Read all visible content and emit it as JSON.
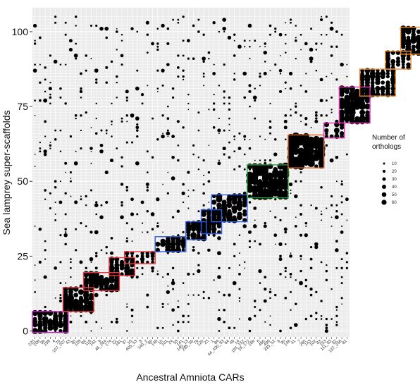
{
  "chart_data": {
    "type": "scatter",
    "title": "",
    "xlabel": "Ancestral Amniota CARs",
    "ylabel": "Sea lamprey super-scaffolds",
    "ylim": [
      -2,
      108
    ],
    "yticks": [
      0,
      25,
      50,
      75,
      100
    ],
    "grid": "on",
    "x_tick_labels": [
      "225",
      "209",
      "39",
      "198",
      "4",
      "70",
      "107_207",
      "43",
      "30",
      "128",
      "84",
      "116",
      "162",
      "9",
      "46_264",
      "174",
      "22",
      "181",
      "37",
      "10",
      "405_53",
      "8",
      "140_2",
      "60",
      "148",
      "10",
      "101",
      "24",
      "58",
      "141",
      "140_13",
      "285_50",
      "79",
      "120",
      "23",
      "1",
      "84",
      "44_430_93",
      "64",
      "46",
      "14",
      "195_152",
      "14_172",
      "169",
      "6",
      "460",
      "496",
      "393_52",
      "9",
      "90",
      "146",
      "41",
      "7",
      "260",
      "143",
      "102",
      "83",
      "153",
      "111_83",
      "32",
      "137_256",
      "82"
    ],
    "legend": {
      "title": "Number of orthologs",
      "position": "right",
      "sizes": [
        10,
        20,
        30,
        40,
        50,
        60
      ]
    },
    "boxes": [
      {
        "x": [
          0.5,
          7.5
        ],
        "y": [
          -0.5,
          6.5
        ],
        "color": "#c623c6"
      },
      {
        "x": [
          6.5,
          12.5
        ],
        "y": [
          6.5,
          14.5
        ],
        "color": "#e8333a"
      },
      {
        "x": [
          10.5,
          17.5
        ],
        "y": [
          13.5,
          19.5
        ],
        "color": "#e8333a"
      },
      {
        "x": [
          15.5,
          20.5
        ],
        "y": [
          18.5,
          24.5
        ],
        "color": "#e8333a"
      },
      {
        "x": [
          18.5,
          24.5
        ],
        "y": [
          22.5,
          26.5
        ],
        "color": "#e8333a"
      },
      {
        "x": [
          24.5,
          30.5
        ],
        "y": [
          26.5,
          31.5
        ],
        "color": "#2f5fe6"
      },
      {
        "x": [
          30.5,
          34.5
        ],
        "y": [
          30.5,
          36.5
        ],
        "color": "#2f5fe6"
      },
      {
        "x": [
          33.5,
          37.5
        ],
        "y": [
          32.5,
          40.5
        ],
        "color": "#2f5fe6"
      },
      {
        "x": [
          35.5,
          42.5
        ],
        "y": [
          36.5,
          45.5
        ],
        "color": "#2f5fe6"
      },
      {
        "x": [
          42.5,
          50.5
        ],
        "y": [
          44.5,
          55.5
        ],
        "color": "#24a03c"
      },
      {
        "x": [
          50.5,
          57.5
        ],
        "y": [
          54.5,
          65.5
        ],
        "color": "#d9641b"
      },
      {
        "x": [
          57.5,
          61.5
        ],
        "y": [
          64.5,
          69.5
        ],
        "color": "#e82fb8"
      },
      {
        "x": [
          60.5,
          66.5
        ],
        "y": [
          69.5,
          81.5
        ],
        "color": "#e82fb8"
      },
      {
        "x": [
          64.5,
          71.5
        ],
        "y": [
          78.5,
          87.5
        ],
        "color": "#f08a2a"
      },
      {
        "x": [
          69.5,
          74.5
        ],
        "y": [
          87.5,
          93.5
        ],
        "color": "#f08a2a"
      },
      {
        "x": [
          72.5,
          80.5
        ],
        "y": [
          92.5,
          101.5
        ],
        "color": "#f08a2a"
      },
      {
        "x": [
          79.5,
          87.5
        ],
        "y": [
          101.5,
          105.5
        ],
        "color": "#24a03c"
      }
    ],
    "clusters": [
      {
        "x": [
          1,
          7
        ],
        "y": [
          0,
          6
        ],
        "size": 22
      },
      {
        "x": [
          7,
          12
        ],
        "y": [
          7,
          14
        ],
        "size": 26
      },
      {
        "x": [
          11,
          17
        ],
        "y": [
          14,
          19
        ],
        "size": 26
      },
      {
        "x": [
          16,
          20
        ],
        "y": [
          19,
          24
        ],
        "size": 22
      },
      {
        "x": [
          19,
          24
        ],
        "y": [
          23,
          26
        ],
        "size": 12
      },
      {
        "x": [
          25,
          30
        ],
        "y": [
          27,
          31
        ],
        "size": 20
      },
      {
        "x": [
          31,
          34
        ],
        "y": [
          31,
          36
        ],
        "size": 24
      },
      {
        "x": [
          34,
          37
        ],
        "y": [
          33,
          40
        ],
        "size": 26
      },
      {
        "x": [
          36,
          42
        ],
        "y": [
          37,
          45
        ],
        "size": 24
      },
      {
        "x": [
          43,
          50
        ],
        "y": [
          45,
          55
        ],
        "size": 34
      },
      {
        "x": [
          51,
          57
        ],
        "y": [
          55,
          65
        ],
        "size": 36
      },
      {
        "x": [
          58,
          61
        ],
        "y": [
          65,
          69
        ],
        "size": 18
      },
      {
        "x": [
          61,
          66
        ],
        "y": [
          70,
          81
        ],
        "size": 30
      },
      {
        "x": [
          65,
          71
        ],
        "y": [
          79,
          87
        ],
        "size": 20
      },
      {
        "x": [
          70,
          74
        ],
        "y": [
          88,
          93
        ],
        "size": 18
      },
      {
        "x": [
          73,
          80
        ],
        "y": [
          93,
          101
        ],
        "size": 24
      },
      {
        "x": [
          80,
          87
        ],
        "y": [
          102,
          105
        ],
        "size": 16
      }
    ],
    "scatter_noise": {
      "count": 900,
      "size_range": [
        1,
        12
      ]
    }
  }
}
